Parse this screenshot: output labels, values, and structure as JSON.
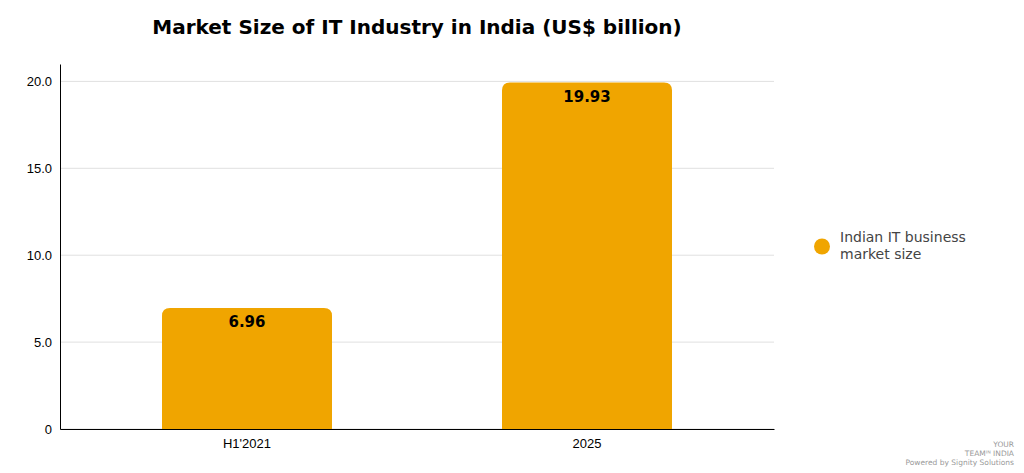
{
  "chart_data": {
    "type": "bar",
    "title": "Market Size of IT Industry in India (US$ billion)",
    "categories": [
      "H1'2021",
      "2025"
    ],
    "series": [
      {
        "name": "Indian IT business\nmarket size",
        "color": "#F0A500",
        "values": [
          6.96,
          19.93
        ]
      }
    ],
    "ylim": [
      0,
      21
    ],
    "yticks": [
      0,
      {
        "value": 5,
        "label": "5.0"
      },
      {
        "value": 10,
        "label": "10.0"
      },
      {
        "value": 15,
        "label": "15.0"
      },
      {
        "value": 20,
        "label": "20.0"
      }
    ],
    "grid": true,
    "legend": "right",
    "data_labels": true,
    "annotations": [
      "YOUR\nTEAMᴵᴺ INDIA\nPowered by Signity Solutions"
    ]
  }
}
